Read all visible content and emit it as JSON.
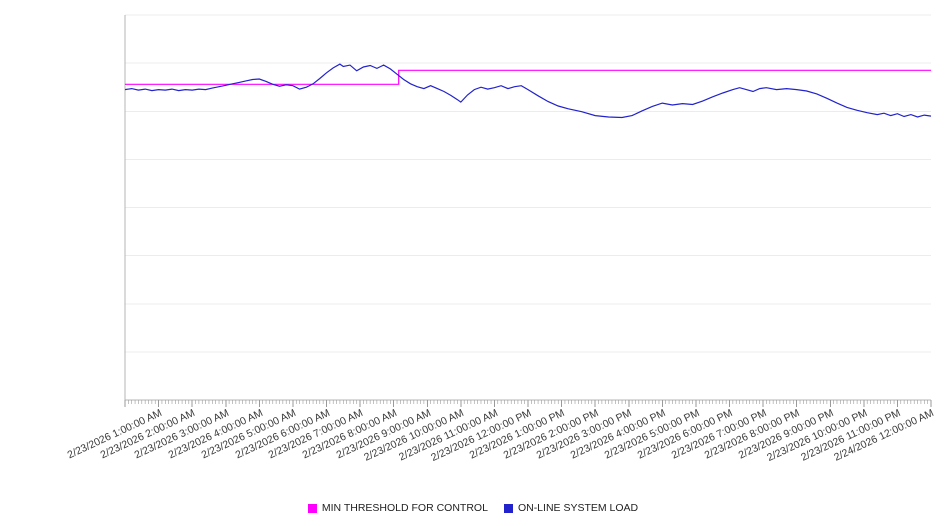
{
  "chart_data": {
    "type": "line",
    "title": "",
    "xlabel": "",
    "ylabel": "",
    "xlim": [
      0,
      24
    ],
    "ylim": [
      0,
      8
    ],
    "grid": "horizontal",
    "legend_position": "bottom-center",
    "y_tick_labels": [],
    "x_labels": [
      "2/23/2026 1:00:00 AM",
      "2/23/2026 2:00:00 AM",
      "2/23/2026 3:00:00 AM",
      "2/23/2026 4:00:00 AM",
      "2/23/2026 5:00:00 AM",
      "2/23/2026 6:00:00 AM",
      "2/23/2026 7:00:00 AM",
      "2/23/2026 8:00:00 AM",
      "2/23/2026 9:00:00 AM",
      "2/23/2026 10:00:00 AM",
      "2/23/2026 11:00:00 AM",
      "2/23/2026 12:00:00 PM",
      "2/23/2026 1:00:00 PM",
      "2/23/2026 2:00:00 PM",
      "2/23/2026 3:00:00 PM",
      "2/23/2026 4:00:00 PM",
      "2/23/2026 5:00:00 PM",
      "2/23/2026 6:00:00 PM",
      "2/23/2026 7:00:00 PM",
      "2/23/2026 8:00:00 PM",
      "2/23/2026 9:00:00 PM",
      "2/23/2026 10:00:00 PM",
      "2/23/2026 11:00:00 PM",
      "2/24/2026 12:00:00 AM"
    ],
    "series": [
      {
        "name": "MIN THRESHOLD FOR CONTROL",
        "color": "#ff00ff",
        "style": "step",
        "points": [
          [
            0,
            6.56
          ],
          [
            8.15,
            6.56
          ],
          [
            8.15,
            6.85
          ],
          [
            24,
            6.85
          ]
        ]
      },
      {
        "name": "ON-LINE SYSTEM LOAD",
        "color": "#2222cc",
        "style": "line",
        "points": [
          [
            0,
            6.45
          ],
          [
            0.2,
            6.47
          ],
          [
            0.4,
            6.44
          ],
          [
            0.6,
            6.46
          ],
          [
            0.8,
            6.43
          ],
          [
            1.0,
            6.45
          ],
          [
            1.2,
            6.44
          ],
          [
            1.4,
            6.46
          ],
          [
            1.6,
            6.43
          ],
          [
            1.8,
            6.45
          ],
          [
            2.0,
            6.44
          ],
          [
            2.2,
            6.46
          ],
          [
            2.4,
            6.45
          ],
          [
            2.6,
            6.48
          ],
          [
            2.8,
            6.51
          ],
          [
            3.0,
            6.54
          ],
          [
            3.2,
            6.57
          ],
          [
            3.4,
            6.6
          ],
          [
            3.6,
            6.63
          ],
          [
            3.8,
            6.66
          ],
          [
            4.0,
            6.67
          ],
          [
            4.2,
            6.62
          ],
          [
            4.4,
            6.56
          ],
          [
            4.6,
            6.52
          ],
          [
            4.8,
            6.55
          ],
          [
            5.0,
            6.53
          ],
          [
            5.2,
            6.46
          ],
          [
            5.4,
            6.5
          ],
          [
            5.6,
            6.57
          ],
          [
            5.8,
            6.68
          ],
          [
            6.0,
            6.8
          ],
          [
            6.2,
            6.9
          ],
          [
            6.4,
            6.98
          ],
          [
            6.5,
            6.93
          ],
          [
            6.7,
            6.96
          ],
          [
            6.9,
            6.84
          ],
          [
            7.1,
            6.92
          ],
          [
            7.3,
            6.95
          ],
          [
            7.5,
            6.89
          ],
          [
            7.7,
            6.96
          ],
          [
            7.9,
            6.88
          ],
          [
            8.1,
            6.77
          ],
          [
            8.3,
            6.66
          ],
          [
            8.5,
            6.57
          ],
          [
            8.7,
            6.51
          ],
          [
            8.9,
            6.47
          ],
          [
            9.1,
            6.53
          ],
          [
            9.3,
            6.47
          ],
          [
            9.5,
            6.41
          ],
          [
            9.7,
            6.33
          ],
          [
            9.9,
            6.24
          ],
          [
            10.0,
            6.19
          ],
          [
            10.2,
            6.34
          ],
          [
            10.4,
            6.45
          ],
          [
            10.6,
            6.5
          ],
          [
            10.8,
            6.46
          ],
          [
            11.0,
            6.49
          ],
          [
            11.2,
            6.53
          ],
          [
            11.4,
            6.47
          ],
          [
            11.6,
            6.51
          ],
          [
            11.8,
            6.53
          ],
          [
            12.0,
            6.45
          ],
          [
            12.3,
            6.32
          ],
          [
            12.6,
            6.2
          ],
          [
            12.9,
            6.11
          ],
          [
            13.2,
            6.05
          ],
          [
            13.6,
            5.99
          ],
          [
            14.0,
            5.91
          ],
          [
            14.4,
            5.88
          ],
          [
            14.8,
            5.87
          ],
          [
            15.1,
            5.91
          ],
          [
            15.4,
            6.01
          ],
          [
            15.7,
            6.1
          ],
          [
            16.0,
            6.17
          ],
          [
            16.3,
            6.13
          ],
          [
            16.6,
            6.16
          ],
          [
            16.9,
            6.14
          ],
          [
            17.2,
            6.21
          ],
          [
            17.5,
            6.3
          ],
          [
            17.8,
            6.38
          ],
          [
            18.1,
            6.45
          ],
          [
            18.3,
            6.49
          ],
          [
            18.5,
            6.45
          ],
          [
            18.7,
            6.41
          ],
          [
            18.9,
            6.47
          ],
          [
            19.1,
            6.49
          ],
          [
            19.4,
            6.45
          ],
          [
            19.7,
            6.47
          ],
          [
            20.0,
            6.45
          ],
          [
            20.3,
            6.42
          ],
          [
            20.6,
            6.36
          ],
          [
            20.9,
            6.27
          ],
          [
            21.2,
            6.17
          ],
          [
            21.5,
            6.08
          ],
          [
            21.8,
            6.02
          ],
          [
            22.1,
            5.97
          ],
          [
            22.4,
            5.93
          ],
          [
            22.6,
            5.96
          ],
          [
            22.8,
            5.91
          ],
          [
            23.0,
            5.95
          ],
          [
            23.2,
            5.89
          ],
          [
            23.4,
            5.93
          ],
          [
            23.6,
            5.88
          ],
          [
            23.8,
            5.92
          ],
          [
            24.0,
            5.9
          ]
        ]
      }
    ],
    "colors": {
      "grid": "#ececec",
      "axis": "#b4b4b4",
      "tick": "#9a9a9a"
    }
  }
}
